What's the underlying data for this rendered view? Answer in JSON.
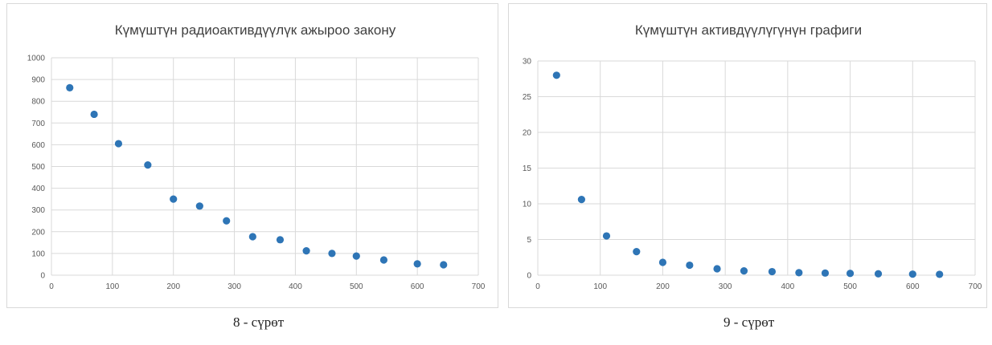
{
  "captions": [
    "8 - сүрөт",
    "9 - сүрөт"
  ],
  "chart_data": [
    {
      "type": "scatter",
      "title": "Күмүштүн радиоактивдүүлүк ажыроо закону",
      "xlabel": "",
      "ylabel": "",
      "xlim": [
        0,
        700
      ],
      "ylim": [
        0,
        1000
      ],
      "xticks": [
        0,
        100,
        200,
        300,
        400,
        500,
        600,
        700
      ],
      "yticks": [
        0,
        100,
        200,
        300,
        400,
        500,
        600,
        700,
        800,
        900,
        1000
      ],
      "grid": true,
      "point_color": "#2e75b6",
      "x": [
        30,
        70,
        110,
        158,
        200,
        243,
        287,
        330,
        375,
        418,
        460,
        500,
        545,
        600,
        643
      ],
      "y": [
        862,
        740,
        605,
        507,
        350,
        318,
        250,
        177,
        163,
        112,
        100,
        88,
        70,
        52,
        48
      ]
    },
    {
      "type": "scatter",
      "title": "Күмүштүн активдүүлүгүнүн графиги",
      "xlabel": "",
      "ylabel": "",
      "xlim": [
        0,
        700
      ],
      "ylim": [
        0,
        30
      ],
      "xticks": [
        0,
        100,
        200,
        300,
        400,
        500,
        600,
        700
      ],
      "yticks": [
        0,
        5,
        10,
        15,
        20,
        25,
        30
      ],
      "grid": true,
      "point_color": "#2e75b6",
      "x": [
        30,
        70,
        110,
        158,
        200,
        243,
        287,
        330,
        375,
        418,
        460,
        500,
        545,
        600,
        643
      ],
      "y": [
        28,
        10.6,
        5.5,
        3.3,
        1.8,
        1.4,
        0.9,
        0.6,
        0.5,
        0.35,
        0.3,
        0.25,
        0.2,
        0.15,
        0.12
      ]
    }
  ]
}
